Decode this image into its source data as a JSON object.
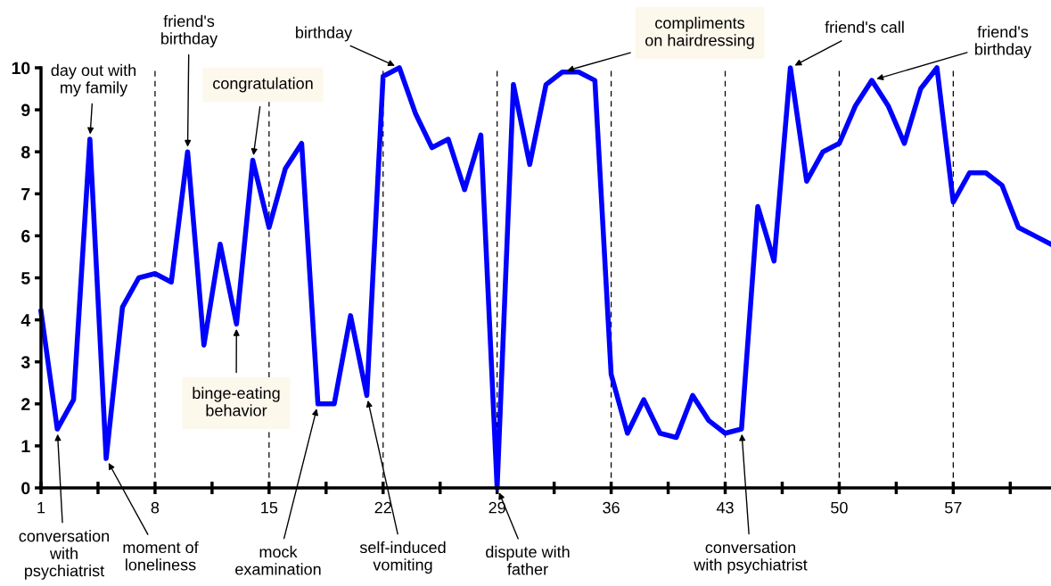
{
  "chart_data": {
    "type": "line",
    "x": [
      1,
      2,
      3,
      4,
      5,
      6,
      7,
      8,
      9,
      10,
      11,
      12,
      13,
      14,
      15,
      16,
      17,
      18,
      19,
      20,
      21,
      22,
      23,
      24,
      25,
      26,
      27,
      28,
      29,
      30,
      31,
      32,
      33,
      34,
      35,
      36,
      37,
      38,
      39,
      40,
      41,
      42,
      43,
      44,
      45,
      46,
      47,
      48,
      49,
      50,
      51,
      52,
      53,
      54,
      55,
      56,
      57,
      58,
      59,
      60,
      61,
      62,
      63
    ],
    "series": [
      {
        "color": "#0000ff",
        "values": [
          4.2,
          1.4,
          2.1,
          8.3,
          0.7,
          4.3,
          5.0,
          5.1,
          4.9,
          8.0,
          3.4,
          5.8,
          3.9,
          7.8,
          6.2,
          7.6,
          8.2,
          2.0,
          2.0,
          4.1,
          2.2,
          9.8,
          10.0,
          8.9,
          8.1,
          8.3,
          7.1,
          8.4,
          0,
          9.6,
          7.7,
          9.6,
          9.9,
          9.9,
          9.7,
          2.7,
          1.3,
          2.1,
          1.3,
          1.2,
          2.2,
          1.6,
          1.3,
          1.4,
          6.7,
          5.4,
          10.0,
          7.3,
          8.0,
          8.2,
          9.1,
          9.7,
          9.1,
          8.2,
          9.5,
          10.0,
          6.8,
          7.5,
          7.5,
          7.2,
          6.2,
          6.0,
          5.8
        ]
      }
    ],
    "xlim": [
      1,
      63
    ],
    "xticks": [
      1,
      {
        "value": 4.5,
        "label": null
      },
      8,
      {
        "value": 11.5,
        "label": null
      },
      15,
      {
        "value": 18.5,
        "label": null
      },
      22,
      {
        "value": 25.5,
        "label": null
      },
      29,
      {
        "value": 32.5,
        "label": null
      },
      36,
      {
        "value": 39.5,
        "label": null
      },
      43,
      {
        "value": 46.5,
        "label": null
      },
      50,
      {
        "value": 53.5,
        "label": null
      },
      57,
      {
        "value": 60.5,
        "label": null
      }
    ],
    "ylim": [
      0,
      10
    ],
    "yticks": [
      0,
      1,
      2,
      3,
      4,
      5,
      6,
      7,
      8,
      9,
      10
    ],
    "grid": false,
    "legend": false,
    "marker": "none",
    "line_style": "solid",
    "ref_lines": [
      {
        "axis": "x",
        "value": 8,
        "color": "#000000",
        "line_style": "dashed"
      },
      {
        "axis": "x",
        "value": 15,
        "color": "#000000",
        "line_style": "dashed"
      },
      {
        "axis": "x",
        "value": 22,
        "color": "#000000",
        "line_style": "dashed"
      },
      {
        "axis": "x",
        "value": 29,
        "color": "#000000",
        "line_style": "dashed"
      },
      {
        "axis": "x",
        "value": 36,
        "color": "#000000",
        "line_style": "dashed"
      },
      {
        "axis": "x",
        "value": 43,
        "color": "#000000",
        "line_style": "dashed"
      },
      {
        "axis": "x",
        "value": 50,
        "color": "#000000",
        "line_style": "dashed"
      },
      {
        "axis": "x",
        "value": 57,
        "color": "#000000",
        "line_style": "dashed"
      }
    ],
    "annotations": [
      {
        "text": "day out with\nmy family",
        "x": 4,
        "y": 8.3
      },
      {
        "text": "friend's\nbirthday",
        "x": 10,
        "y": 8.0
      },
      {
        "text": "congratulation",
        "x": 14,
        "y": 7.8
      },
      {
        "text": "birthday",
        "x": 23,
        "y": 10.0
      },
      {
        "text": "compliments\non hairdressing",
        "x": 33,
        "y": 9.9
      },
      {
        "text": "friend's call",
        "x": 47,
        "y": 10.0
      },
      {
        "text": "friend's\nbirthday",
        "x": 52,
        "y": 9.7
      },
      {
        "text": "conversation\nwith\npsychiatrist",
        "x": 2,
        "y": 1.4
      },
      {
        "text": "moment of\nloneliness",
        "x": 5,
        "y": 0.7
      },
      {
        "text": "binge-eating\nbehavior",
        "x": 13,
        "y": 3.9
      },
      {
        "text": "mock\nexamination",
        "x": 18,
        "y": 2.0
      },
      {
        "text": "self-induced\nvomiting",
        "x": 21,
        "y": 2.2
      },
      {
        "text": "dispute with\nfather",
        "x": 29,
        "y": 0
      },
      {
        "text": "conversation\nwith psychiatrist",
        "x": 44,
        "y": 1.4
      }
    ]
  }
}
